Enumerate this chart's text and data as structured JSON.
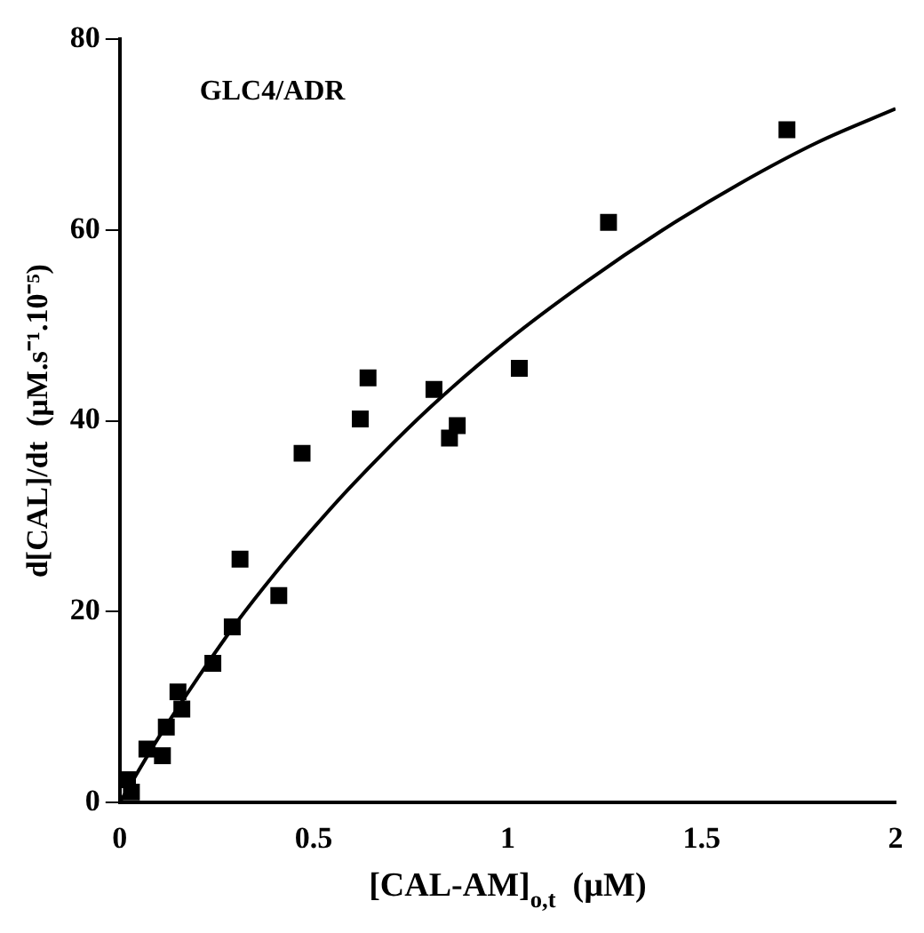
{
  "chart_data": {
    "type": "scatter",
    "xlabel": "[CAL-AM]$_{o,t}$  (µM)",
    "ylabel": "d[CAL]/dt  (µM.s⁻¹.10⁻⁵)",
    "annotations": [
      "GLC4/ADR"
    ],
    "xlim": [
      0,
      2
    ],
    "xticks": [
      0,
      0.5,
      1,
      1.5,
      2
    ],
    "ylim": [
      0,
      80
    ],
    "yticks": [
      0,
      20,
      40,
      60,
      80
    ],
    "grid": false,
    "legend": false,
    "marker": "square",
    "series": [
      {
        "color": "#000000",
        "x": [
          0.02,
          0.03,
          0.07,
          0.11,
          0.12,
          0.15,
          0.16,
          0.24,
          0.29,
          0.31,
          0.41,
          0.47,
          0.62,
          0.64,
          0.81,
          0.85,
          0.87,
          1.03,
          1.26,
          1.72
        ],
        "values": [
          2.4,
          1.1,
          5.6,
          4.9,
          7.9,
          11.6,
          9.8,
          14.6,
          18.4,
          25.5,
          21.7,
          36.6,
          40.2,
          44.5,
          43.3,
          38.2,
          39.5,
          45.5,
          60.8,
          70.5
        ]
      },
      {
        "type": "line",
        "color": "#000000",
        "marker": "none",
        "line_style": "solid",
        "x": [
          0,
          0.1,
          0.2,
          0.3,
          0.4,
          0.5,
          0.6,
          0.8,
          1.0,
          1.2,
          1.4,
          1.6,
          1.8,
          2.0
        ],
        "values": [
          0,
          6.8,
          13,
          18.8,
          24,
          28.8,
          33.3,
          41.4,
          48.4,
          54.5,
          60,
          64.9,
          69.2,
          72.7
        ]
      }
    ]
  }
}
